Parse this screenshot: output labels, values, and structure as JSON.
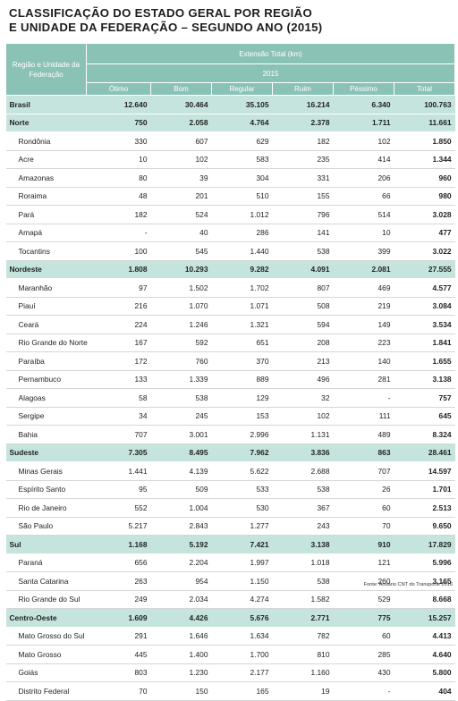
{
  "title": {
    "line1": "CLASSIFICAÇÃO DO ESTADO GERAL POR REGIÃO",
    "line2": "E UNIDADE DA FEDERAÇÃO – SEGUNDO ANO (2015)"
  },
  "table": {
    "row_header": "Região e Unidade da Federação",
    "group_header": "Extensão Total (km)",
    "year": "2015",
    "columns": [
      "Ótimo",
      "Bom",
      "Regular",
      "Ruim",
      "Péssimo",
      "Total"
    ],
    "rows": [
      {
        "name": "Brasil",
        "type": "region",
        "values": [
          "12.640",
          "30.464",
          "35.105",
          "16.214",
          "6.340",
          "100.763"
        ]
      },
      {
        "name": "Norte",
        "type": "region",
        "values": [
          "750",
          "2.058",
          "4.764",
          "2.378",
          "1.711",
          "11.661"
        ]
      },
      {
        "name": "Rondônia",
        "type": "state",
        "values": [
          "330",
          "607",
          "629",
          "182",
          "102",
          "1.850"
        ]
      },
      {
        "name": "Acre",
        "type": "state",
        "values": [
          "10",
          "102",
          "583",
          "235",
          "414",
          "1.344"
        ]
      },
      {
        "name": "Amazonas",
        "type": "state",
        "values": [
          "80",
          "39",
          "304",
          "331",
          "206",
          "960"
        ]
      },
      {
        "name": "Roraima",
        "type": "state",
        "values": [
          "48",
          "201",
          "510",
          "155",
          "66",
          "980"
        ]
      },
      {
        "name": "Pará",
        "type": "state",
        "values": [
          "182",
          "524",
          "1.012",
          "796",
          "514",
          "3.028"
        ]
      },
      {
        "name": "Amapá",
        "type": "state",
        "values": [
          "-",
          "40",
          "286",
          "141",
          "10",
          "477"
        ]
      },
      {
        "name": "Tocantins",
        "type": "state",
        "values": [
          "100",
          "545",
          "1.440",
          "538",
          "399",
          "3.022"
        ]
      },
      {
        "name": "Nordeste",
        "type": "region",
        "values": [
          "1.808",
          "10.293",
          "9.282",
          "4.091",
          "2.081",
          "27.555"
        ]
      },
      {
        "name": "Maranhão",
        "type": "state",
        "values": [
          "97",
          "1.502",
          "1.702",
          "807",
          "469",
          "4.577"
        ]
      },
      {
        "name": "Piauí",
        "type": "state",
        "values": [
          "216",
          "1.070",
          "1.071",
          "508",
          "219",
          "3.084"
        ]
      },
      {
        "name": "Ceará",
        "type": "state",
        "values": [
          "224",
          "1.246",
          "1.321",
          "594",
          "149",
          "3.534"
        ]
      },
      {
        "name": "Rio Grande do Norte",
        "type": "state",
        "values": [
          "167",
          "592",
          "651",
          "208",
          "223",
          "1.841"
        ]
      },
      {
        "name": "Paraíba",
        "type": "state",
        "values": [
          "172",
          "760",
          "370",
          "213",
          "140",
          "1.655"
        ]
      },
      {
        "name": "Pernambuco",
        "type": "state",
        "values": [
          "133",
          "1.339",
          "889",
          "496",
          "281",
          "3.138"
        ]
      },
      {
        "name": "Alagoas",
        "type": "state",
        "values": [
          "58",
          "538",
          "129",
          "32",
          "-",
          "757"
        ]
      },
      {
        "name": "Sergipe",
        "type": "state",
        "values": [
          "34",
          "245",
          "153",
          "102",
          "111",
          "645"
        ]
      },
      {
        "name": "Bahia",
        "type": "state",
        "values": [
          "707",
          "3.001",
          "2.996",
          "1.131",
          "489",
          "8.324"
        ]
      },
      {
        "name": "Sudeste",
        "type": "region",
        "values": [
          "7.305",
          "8.495",
          "7.962",
          "3.836",
          "863",
          "28.461"
        ]
      },
      {
        "name": "Minas Gerais",
        "type": "state",
        "values": [
          "1.441",
          "4.139",
          "5.622",
          "2.688",
          "707",
          "14.597"
        ]
      },
      {
        "name": "Espírito Santo",
        "type": "state",
        "values": [
          "95",
          "509",
          "533",
          "538",
          "26",
          "1.701"
        ]
      },
      {
        "name": "Rio de Janeiro",
        "type": "state",
        "values": [
          "552",
          "1.004",
          "530",
          "367",
          "60",
          "2.513"
        ]
      },
      {
        "name": "São Paulo",
        "type": "state",
        "values": [
          "5.217",
          "2.843",
          "1.277",
          "243",
          "70",
          "9.650"
        ]
      },
      {
        "name": "Sul",
        "type": "region",
        "values": [
          "1.168",
          "5.192",
          "7.421",
          "3.138",
          "910",
          "17.829"
        ]
      },
      {
        "name": "Paraná",
        "type": "state",
        "values": [
          "656",
          "2.204",
          "1.997",
          "1.018",
          "121",
          "5.996"
        ]
      },
      {
        "name": "Santa Catarina",
        "type": "state",
        "values": [
          "263",
          "954",
          "1.150",
          "538",
          "260",
          "3.165"
        ]
      },
      {
        "name": "Rio Grande do Sul",
        "type": "state",
        "values": [
          "249",
          "2.034",
          "4.274",
          "1.582",
          "529",
          "8.668"
        ]
      },
      {
        "name": "Centro-Oeste",
        "type": "region",
        "values": [
          "1.609",
          "4.426",
          "5.676",
          "2.771",
          "775",
          "15.257"
        ]
      },
      {
        "name": "Mato Grosso do Sul",
        "type": "state",
        "values": [
          "291",
          "1.646",
          "1.634",
          "782",
          "60",
          "4.413"
        ]
      },
      {
        "name": "Mato Grosso",
        "type": "state",
        "values": [
          "445",
          "1.400",
          "1.700",
          "810",
          "285",
          "4.640"
        ]
      },
      {
        "name": "Goiás",
        "type": "state",
        "values": [
          "803",
          "1.230",
          "2.177",
          "1.160",
          "430",
          "5.800"
        ]
      },
      {
        "name": "Distrito Federal",
        "type": "state",
        "values": [
          "70",
          "150",
          "165",
          "19",
          "-",
          "404"
        ]
      }
    ]
  },
  "source": "Fonte: Anuário CNT do Transporte 2016"
}
